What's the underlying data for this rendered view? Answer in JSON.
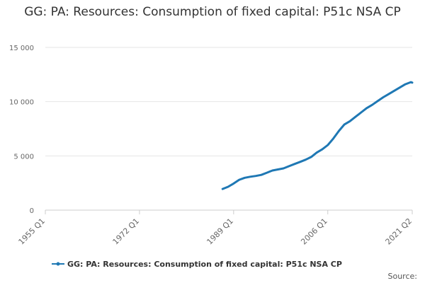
{
  "chart_data": {
    "type": "line",
    "title": "GG: PA: Resources: Consumption of fixed capital: P51c NSA CP",
    "xlabel": "",
    "ylabel": "",
    "x_range": [
      "1955 Q1",
      "2021 Q2"
    ],
    "x_ticks": [
      "1955 Q1",
      "1972 Q1",
      "1989 Q1",
      "2006 Q1",
      "2021 Q2"
    ],
    "y_ticks": [
      "0",
      "5 000",
      "10 000",
      "15 000"
    ],
    "ylim": [
      0,
      15000
    ],
    "grid": true,
    "legend_position": "bottom",
    "colors": {
      "series": "#1f78b4",
      "grid": "#e6e6e6",
      "axis": "#cccccc"
    },
    "series": [
      {
        "name": "GG: PA: Resources: Consumption of fixed capital: P51c NSA CP",
        "points": [
          [
            "1987 Q1",
            1950
          ],
          [
            "1988 Q1",
            2150
          ],
          [
            "1989 Q1",
            2450
          ],
          [
            "1990 Q1",
            2800
          ],
          [
            "1991 Q1",
            2980
          ],
          [
            "1992 Q1",
            3080
          ],
          [
            "1993 Q1",
            3150
          ],
          [
            "1994 Q1",
            3250
          ],
          [
            "1995 Q1",
            3450
          ],
          [
            "1996 Q1",
            3650
          ],
          [
            "1997 Q1",
            3750
          ],
          [
            "1998 Q1",
            3850
          ],
          [
            "1999 Q1",
            4050
          ],
          [
            "2000 Q1",
            4250
          ],
          [
            "2001 Q1",
            4450
          ],
          [
            "2002 Q1",
            4650
          ],
          [
            "2003 Q1",
            4900
          ],
          [
            "2004 Q1",
            5300
          ],
          [
            "2005 Q1",
            5600
          ],
          [
            "2006 Q1",
            6000
          ],
          [
            "2007 Q1",
            6600
          ],
          [
            "2008 Q1",
            7300
          ],
          [
            "2009 Q1",
            7900
          ],
          [
            "2010 Q1",
            8200
          ],
          [
            "2011 Q1",
            8600
          ],
          [
            "2012 Q1",
            9000
          ],
          [
            "2013 Q1",
            9400
          ],
          [
            "2014 Q1",
            9700
          ],
          [
            "2015 Q1",
            10050
          ],
          [
            "2016 Q1",
            10400
          ],
          [
            "2017 Q1",
            10700
          ],
          [
            "2018 Q1",
            11000
          ],
          [
            "2019 Q1",
            11300
          ],
          [
            "2020 Q1",
            11600
          ],
          [
            "2021 Q1",
            11800
          ],
          [
            "2021 Q2",
            11750
          ]
        ]
      }
    ],
    "source_label": "Source:"
  }
}
